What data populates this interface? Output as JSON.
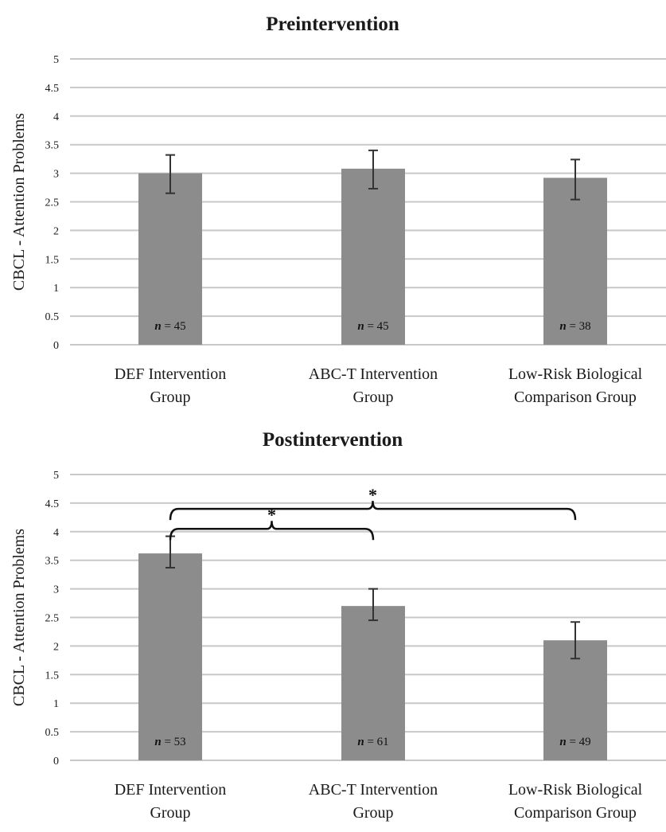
{
  "colors": {
    "bar": "#8c8c8c",
    "grid": "#c8c8c8",
    "error_bar": "#333333",
    "bracket": "#111111"
  },
  "chart_data": [
    {
      "type": "bar",
      "title": "Preintervention",
      "ylabel": "CBCL - Attention Problems",
      "xlabel": "",
      "ylim": [
        0,
        5
      ],
      "yticks": [
        "0",
        "0.5",
        "1",
        "1.5",
        "2",
        "2.5",
        "3",
        "3.5",
        "4",
        "4.5",
        "5"
      ],
      "grid": true,
      "categories": [
        [
          "DEF Intervention",
          "Group"
        ],
        [
          "ABC-T Intervention",
          "Group"
        ],
        [
          "Low-Risk Biological",
          "Comparison Group"
        ]
      ],
      "values": [
        3.0,
        3.08,
        2.92
      ],
      "error_low": [
        2.65,
        2.73,
        2.54
      ],
      "error_high": [
        3.32,
        3.4,
        3.24
      ],
      "n_labels": [
        {
          "prefix": "n",
          "text": " = 45"
        },
        {
          "prefix": "n",
          "text": " = 45"
        },
        {
          "prefix": "n",
          "text": " = 38"
        }
      ],
      "significance": []
    },
    {
      "type": "bar",
      "title": "Postintervention",
      "ylabel": "CBCL - Attention Problems",
      "xlabel": "",
      "ylim": [
        0,
        5
      ],
      "yticks": [
        "0",
        "0.5",
        "1",
        "1.5",
        "2",
        "2.5",
        "3",
        "3.5",
        "4",
        "4.5",
        "5"
      ],
      "grid": true,
      "categories": [
        [
          "DEF Intervention",
          "Group"
        ],
        [
          "ABC-T Intervention",
          "Group"
        ],
        [
          "Low-Risk Biological",
          "Comparison Group"
        ]
      ],
      "values": [
        3.62,
        2.7,
        2.1
      ],
      "error_low": [
        3.37,
        2.45,
        1.78
      ],
      "error_high": [
        3.92,
        3.0,
        2.42
      ],
      "n_labels": [
        {
          "prefix": "n",
          "text": " = 53"
        },
        {
          "prefix": "n",
          "text": " = 61"
        },
        {
          "prefix": "n",
          "text": " = 49"
        }
      ],
      "significance": [
        {
          "from": 0,
          "to": 2,
          "level": 4.4,
          "label": "*"
        },
        {
          "from": 0,
          "to": 1,
          "level": 4.05,
          "label": "*"
        }
      ]
    }
  ]
}
